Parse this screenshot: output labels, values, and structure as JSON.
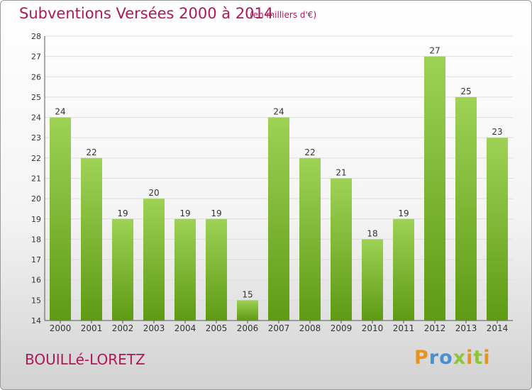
{
  "header": {
    "title": "Subventions Versées 2000 à 2014",
    "subtitle": "(en milliers d'€)"
  },
  "footer": {
    "commune": "BOUILLé-LORETZ",
    "logo_text": "Proxiti"
  },
  "colors": {
    "title": "#b0175a",
    "bar_top": "#9ed255",
    "bar_bottom": "#5e9a14",
    "logo_letters": [
      "#e8931e",
      "#4a8fd1",
      "#4a8fd1",
      "#8fc43c",
      "#e8931e",
      "#8fc43c",
      "#e8931e"
    ]
  },
  "chart_data": {
    "type": "bar",
    "title": "Subventions Versées 2000 à 2014",
    "subtitle": "(en milliers d'€)",
    "xlabel": "",
    "ylabel": "",
    "categories": [
      "2000",
      "2001",
      "2002",
      "2003",
      "2004",
      "2005",
      "2006",
      "2007",
      "2008",
      "2009",
      "2010",
      "2011",
      "2012",
      "2013",
      "2014"
    ],
    "values": [
      24,
      22,
      19,
      20,
      19,
      19,
      15,
      24,
      22,
      21,
      18,
      19,
      27,
      25,
      23
    ],
    "ylim": [
      14,
      28
    ],
    "yticks": [
      14,
      15,
      16,
      17,
      18,
      19,
      20,
      21,
      22,
      23,
      24,
      25,
      26,
      27,
      28
    ],
    "grid": true,
    "data_labels": true
  }
}
